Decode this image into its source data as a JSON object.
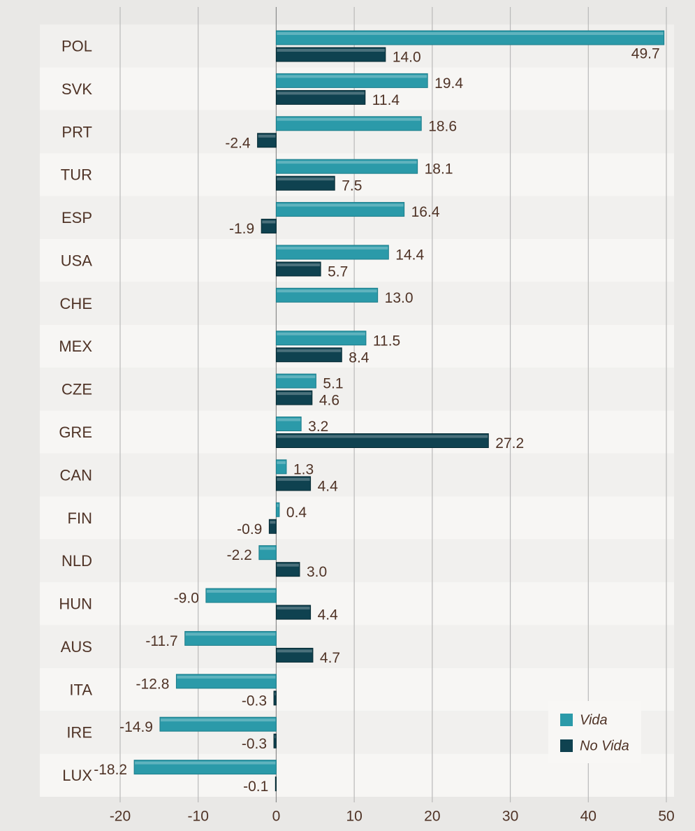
{
  "chart_data": {
    "type": "bar",
    "orientation": "horizontal",
    "categories": [
      "POL",
      "SVK",
      "PRT",
      "TUR",
      "ESP",
      "USA",
      "CHE",
      "MEX",
      "CZE",
      "GRE",
      "CAN",
      "FIN",
      "NLD",
      "HUN",
      "AUS",
      "ITA",
      "IRE",
      "LUX"
    ],
    "series": [
      {
        "name": "Vida",
        "color": "#2b9aa9",
        "values": [
          49.7,
          19.4,
          18.6,
          18.1,
          16.4,
          14.4,
          13.0,
          11.5,
          5.1,
          3.2,
          1.3,
          0.4,
          -2.2,
          -9.0,
          -11.7,
          -12.8,
          -14.9,
          -18.2
        ],
        "value_labels": [
          "49.7",
          "19.4",
          "18.6",
          "18.1",
          "16.4",
          "14.4",
          "13.0",
          "11.5",
          "5.1",
          "3.2",
          "1.3",
          "0.4",
          "-2.2",
          "-9.0",
          "-11.7",
          "-12.8",
          "-14.9",
          "-18.2"
        ]
      },
      {
        "name": "No Vida",
        "color": "#0f4250",
        "values": [
          14.0,
          11.4,
          -2.4,
          7.5,
          -1.9,
          5.7,
          null,
          8.4,
          4.6,
          27.2,
          4.4,
          -0.9,
          3.0,
          4.4,
          4.7,
          -0.3,
          -0.3,
          -0.1
        ],
        "value_labels": [
          "14.0",
          "11.4",
          "-2.4",
          "7.5",
          "-1.9",
          "5.7",
          null,
          "8.4",
          "4.6",
          "27.2",
          "4.4",
          "-0.9",
          "3.0",
          "4.4",
          "4.7",
          "-0.3",
          "-0.3",
          "-0.1"
        ]
      }
    ],
    "xlim": [
      -20,
      50
    ],
    "xticks": [
      -20,
      -10,
      0,
      10,
      20,
      30,
      40,
      50
    ],
    "grid": true,
    "legend": "lower right"
  }
}
